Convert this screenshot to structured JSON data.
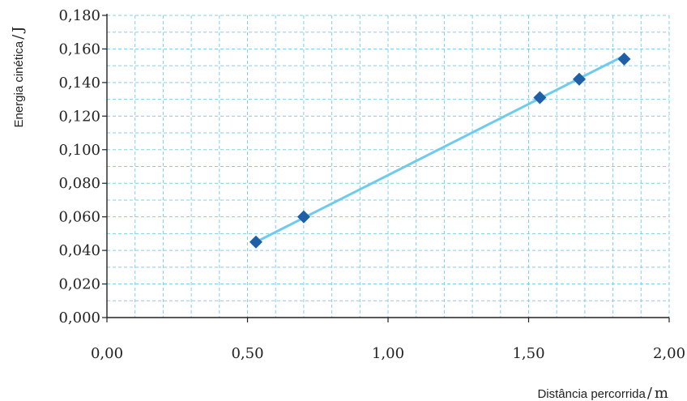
{
  "chart_data": {
    "type": "scatter",
    "xlabel": "Distância percorrida",
    "xunit": "m",
    "ylabel": "Energia cinética",
    "yunit": "J",
    "xlim": [
      0,
      2.0
    ],
    "ylim": [
      0,
      0.18
    ],
    "x_ticks": [
      "0,00",
      "0,50",
      "1,00",
      "1,50",
      "2,00"
    ],
    "y_ticks": [
      "0,000",
      "0,020",
      "0,040",
      "0,060",
      "0,080",
      "0,100",
      "0,120",
      "0,140",
      "0,160",
      "0,180"
    ],
    "grid": true,
    "points": [
      {
        "x": 0.53,
        "y": 0.045
      },
      {
        "x": 0.7,
        "y": 0.06
      },
      {
        "x": 1.54,
        "y": 0.131
      },
      {
        "x": 1.68,
        "y": 0.142
      },
      {
        "x": 1.84,
        "y": 0.154
      }
    ],
    "fit_line": {
      "x": [
        0.53,
        1.84
      ],
      "y": [
        0.045,
        0.156
      ]
    },
    "colors": {
      "marker": "#1f5fa8",
      "fit": "#6ecbef",
      "grid": "#7fd0ec",
      "axis": "#222222"
    }
  }
}
